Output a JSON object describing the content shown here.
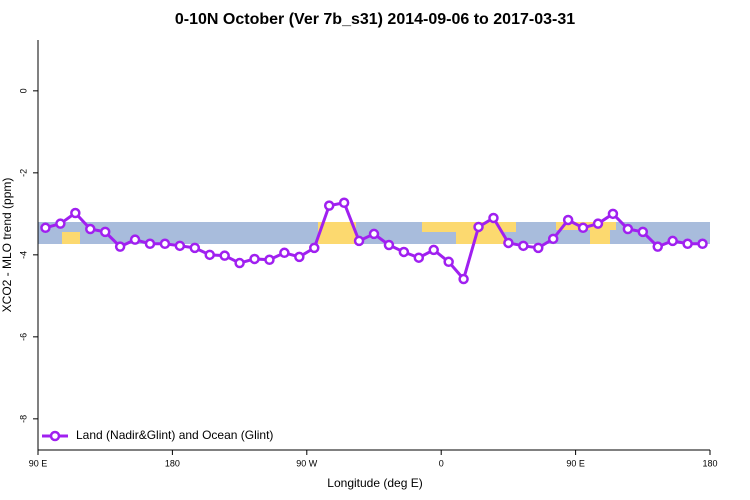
{
  "chart_data": {
    "type": "line",
    "title": "0-10N October (Ver 7b_s31)   2014-09-06 to 2017-03-31",
    "x_label": "Longitude (deg E)",
    "y_label": "XCO2 - MLO trend (ppm)",
    "x": [
      95,
      105,
      115,
      125,
      135,
      145,
      155,
      165,
      175,
      185,
      195,
      205,
      215,
      225,
      235,
      245,
      255,
      265,
      275,
      285,
      295,
      305,
      315,
      325,
      335,
      345,
      355,
      365,
      375,
      385,
      395,
      405,
      415,
      425,
      435,
      445,
      455,
      465,
      475,
      485,
      495,
      505,
      515,
      525,
      535
    ],
    "series": [
      {
        "name": "Land (Nadir&Glint) and Ocean (Glint)",
        "color": "#a020f0",
        "values": [
          -3.34,
          -3.24,
          -2.98,
          -3.37,
          -3.44,
          -3.8,
          -3.63,
          -3.73,
          -3.73,
          -3.78,
          -3.83,
          -4.0,
          -4.02,
          -4.2,
          -4.1,
          -4.12,
          -3.95,
          -4.05,
          -3.83,
          -2.8,
          -2.73,
          -3.66,
          -3.49,
          -3.76,
          -3.93,
          -4.07,
          -3.88,
          -4.17,
          -4.59,
          -3.32,
          -3.1,
          -3.71,
          -3.78,
          -3.83,
          -3.61,
          -3.15,
          -3.34,
          -3.24,
          -3.0,
          -3.37,
          -3.44,
          -3.8,
          -3.66,
          -3.73,
          -3.73
        ]
      }
    ],
    "xlim": [
      90,
      540
    ],
    "ylim": [
      -8.76,
      1.24
    ],
    "xticks": [
      {
        "value": 90,
        "label": "90 E"
      },
      {
        "value": 180,
        "label": "180"
      },
      {
        "value": 270,
        "label": "90 W"
      },
      {
        "value": 360,
        "label": "0"
      },
      {
        "value": 450,
        "label": "90 E"
      },
      {
        "value": 540,
        "label": "180"
      }
    ],
    "yticks": [
      0,
      -2,
      -4,
      -6,
      -8
    ],
    "legend": "bottom-left"
  }
}
